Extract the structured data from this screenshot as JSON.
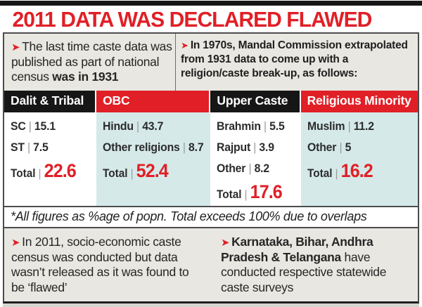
{
  "title": "2011 DATA WAS DECLARED FLAWED",
  "arrow_glyph": "➤",
  "colors": {
    "red": "#e11f26",
    "black": "#161616",
    "teal": "#d5e9e9",
    "gray_panel": "#e8e7e1"
  },
  "intro": {
    "left": {
      "text_regular": "The last time caste data was published as part of national census ",
      "text_bold": "was in 1931"
    },
    "right": {
      "text": "In 1970s, Mandal Commission extrapolated from 1931 data to come up with a religion/caste break-up, as follows:"
    }
  },
  "chart_data": {
    "type": "table",
    "title": "2011 DATA WAS DECLARED FLAWED",
    "unit": "% of population",
    "separator": "|",
    "total_label": "Total",
    "columns": [
      {
        "header": "Dalit & Tribal",
        "header_color": "#161616",
        "body_color": "#ffffff",
        "rows": [
          {
            "label": "SC",
            "value": "15.1"
          },
          {
            "label": "ST",
            "value": "7.5"
          }
        ],
        "total": "22.6"
      },
      {
        "header": "OBC",
        "header_color": "#e11f26",
        "body_color": "#d5e9e9",
        "rows": [
          {
            "label": "Hindu",
            "value": "43.7"
          },
          {
            "label": "Other religions",
            "value": "8.7"
          }
        ],
        "total": "52.4"
      },
      {
        "header": "Upper Caste",
        "header_color": "#161616",
        "body_color": "#ffffff",
        "rows": [
          {
            "label": "Brahmin",
            "value": "5.5"
          },
          {
            "label": "Rajput",
            "value": "3.9"
          },
          {
            "label": "Other",
            "value": "8.2"
          }
        ],
        "total": "17.6"
      },
      {
        "header": "Religious Minority",
        "header_color": "#e11f26",
        "body_color": "#d5e9e9",
        "rows": [
          {
            "label": "Muslim",
            "value": "11.2"
          },
          {
            "label": "Other",
            "value": "5"
          }
        ],
        "total": "16.2"
      }
    ],
    "footnote": "*All figures as %age of popn. Total exceeds 100% due to overlaps"
  },
  "footer": {
    "left": {
      "text": "In 2011, socio-economic caste census was conducted but data wasn’t released as it was found to be ‘flawed’"
    },
    "right": {
      "text_bold": "Karnataka, Bihar, Andhra Pradesh & Telangana",
      "text_regular": " have conducted respective statewide caste surveys"
    }
  }
}
